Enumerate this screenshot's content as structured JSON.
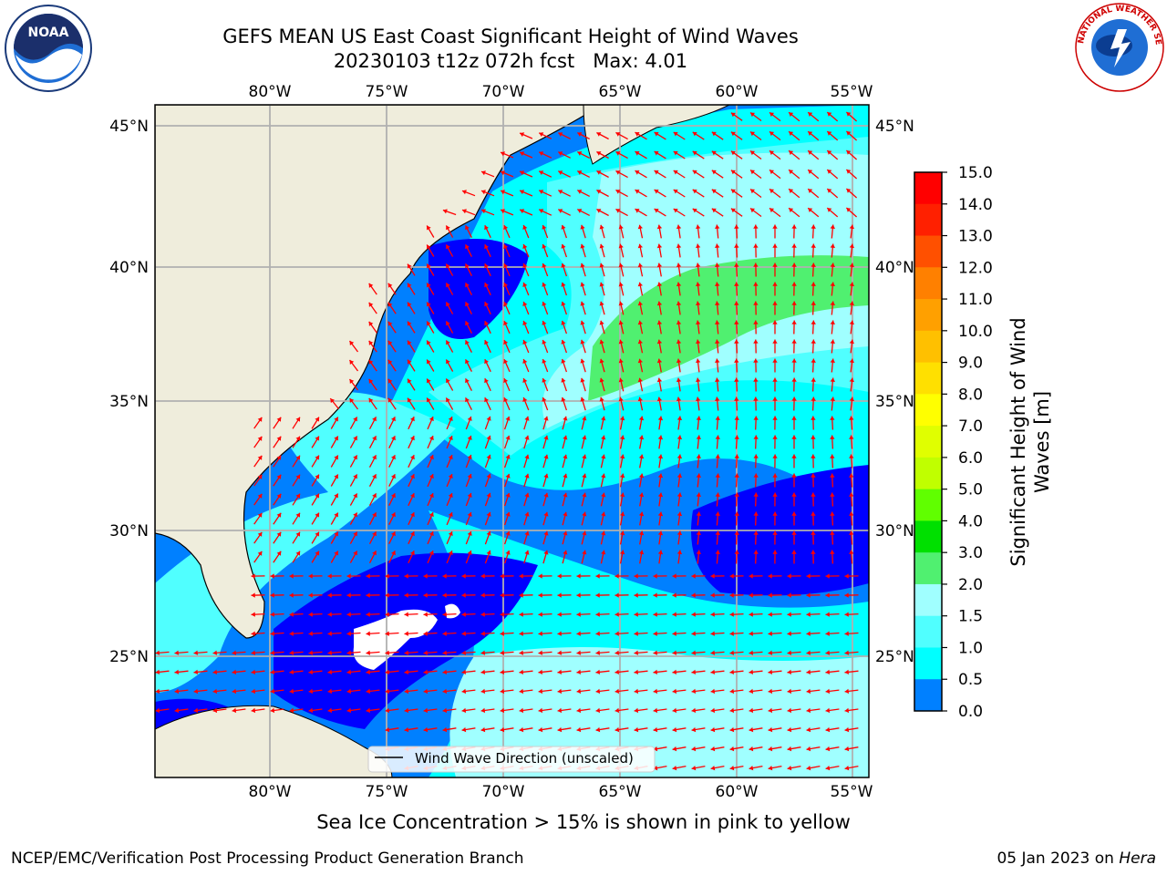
{
  "header": {
    "title_line1": "GEFS MEAN US East Coast Significant Height of Wind Waves",
    "title_line2": "20230103 t12z 072h fcst   Max: 4.01"
  },
  "logos": {
    "left": "NOAA",
    "right": "NATIONAL WEATHER SERVICE"
  },
  "map": {
    "lon_labels": [
      "80°W",
      "75°W",
      "70°W",
      "65°W",
      "60°W",
      "55°W"
    ],
    "lat_labels": [
      "45°N",
      "40°N",
      "35°N",
      "30°N",
      "25°N"
    ],
    "legend_label": "Wind Wave Direction (unscaled)",
    "colors": {
      "land": "#efeddc",
      "ocean_low": "#0000ff",
      "arrow": "#ff0000",
      "grid": "#b0b0b0"
    }
  },
  "colorbar": {
    "label_line1": "Significant Height of Wind",
    "label_line2": "Waves [m]",
    "ticks": [
      "15.0",
      "14.0",
      "13.0",
      "12.0",
      "11.0",
      "10.0",
      "9.0",
      "8.0",
      "7.0",
      "6.0",
      "5.0",
      "4.0",
      "3.0",
      "2.0",
      "1.5",
      "1.0",
      "0.5",
      "0.0"
    ],
    "colors": [
      "#ff0000",
      "#ff2000",
      "#ff5000",
      "#ff8000",
      "#ffa000",
      "#ffc000",
      "#ffe000",
      "#ffff00",
      "#e0ff00",
      "#c0ff00",
      "#60ff00",
      "#00e000",
      "#50f070",
      "#a0ffff",
      "#50ffff",
      "#00ffff",
      "#0080ff",
      "#0000ff"
    ]
  },
  "footer": {
    "note": "Sea Ice Concentration > 15% is shown in pink to yellow",
    "left": "NCEP/EMC/Verification Post Processing Product Generation Branch",
    "right_date": "05 Jan 2023 on ",
    "right_host": "Hera"
  }
}
